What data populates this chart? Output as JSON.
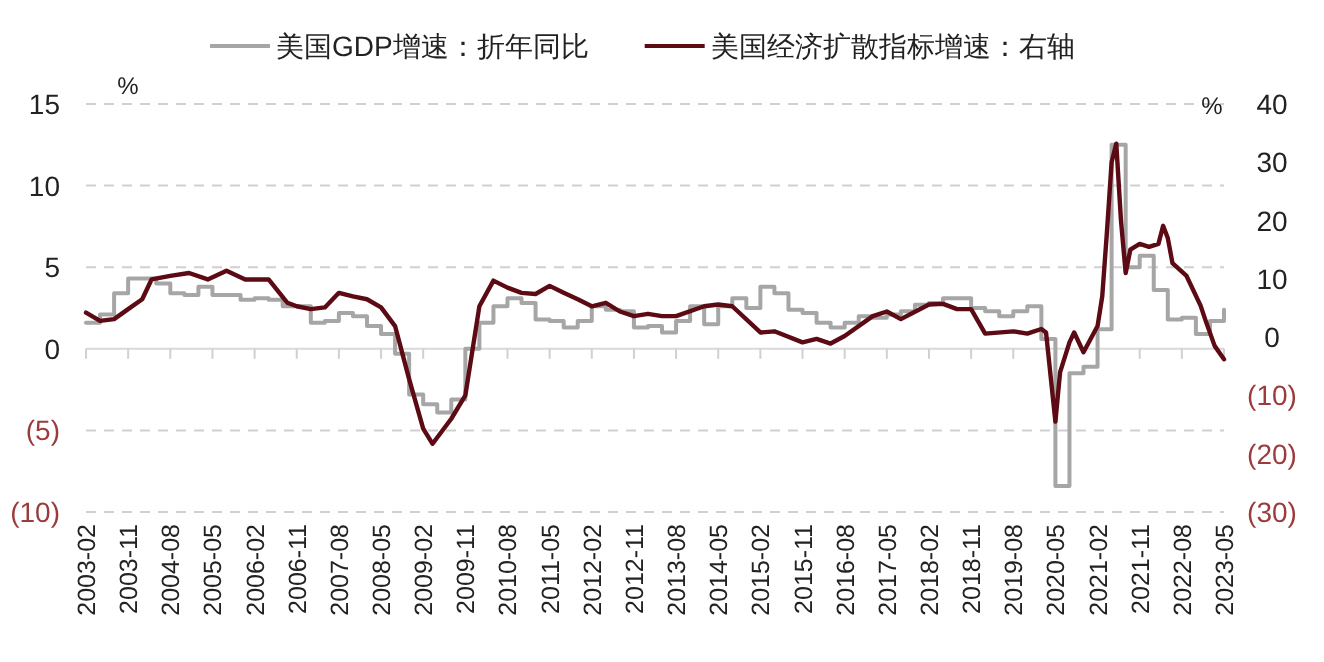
{
  "chart_data": {
    "type": "line",
    "ylabel": "%",
    "y2label": "%",
    "legend": "top",
    "grid": "y",
    "xlim": [
      "2003-02",
      "2023-05"
    ],
    "xticks": [
      "2003-02",
      "2003-11",
      "2004-08",
      "2005-05",
      "2006-02",
      "2006-11",
      "2007-08",
      "2008-05",
      "2009-02",
      "2009-11",
      "2010-08",
      "2011-05",
      "2012-02",
      "2012-11",
      "2013-08",
      "2014-05",
      "2015-02",
      "2015-11",
      "2016-08",
      "2017-05",
      "2018-02",
      "2018-11",
      "2019-08",
      "2020-05",
      "2021-02",
      "2021-11",
      "2022-08",
      "2023-05"
    ],
    "ylim": [
      -10,
      15
    ],
    "yticks": [
      {
        "value": -10,
        "label": "(10)"
      },
      {
        "value": -5,
        "label": "(5)"
      },
      0,
      5,
      10,
      15
    ],
    "y2lim": [
      -30,
      40
    ],
    "y2ticks": [
      {
        "value": -30,
        "label": "(30)"
      },
      {
        "value": -20,
        "label": "(20)"
      },
      {
        "value": -10,
        "label": "(10)"
      },
      0,
      10,
      20,
      30,
      40
    ],
    "ref_lines": [
      {
        "axis": "y",
        "value": 0,
        "color": "#d9d9d9"
      }
    ],
    "series": [
      {
        "name": "美国GDP增速：折年同比",
        "type": "step",
        "color": "#a6a6a6",
        "x": [
          "2003-02",
          "2003-05",
          "2003-08",
          "2003-11",
          "2004-02",
          "2004-05",
          "2004-08",
          "2004-11",
          "2005-02",
          "2005-05",
          "2005-08",
          "2005-11",
          "2006-02",
          "2006-05",
          "2006-08",
          "2006-11",
          "2007-02",
          "2007-05",
          "2007-08",
          "2007-11",
          "2008-02",
          "2008-05",
          "2008-08",
          "2008-11",
          "2009-02",
          "2009-05",
          "2009-08",
          "2009-11",
          "2010-02",
          "2010-05",
          "2010-08",
          "2010-11",
          "2011-02",
          "2011-05",
          "2011-08",
          "2011-11",
          "2012-02",
          "2012-05",
          "2012-08",
          "2012-11",
          "2013-02",
          "2013-05",
          "2013-08",
          "2013-11",
          "2014-02",
          "2014-05",
          "2014-08",
          "2014-11",
          "2015-02",
          "2015-05",
          "2015-08",
          "2015-11",
          "2016-02",
          "2016-05",
          "2016-08",
          "2016-11",
          "2017-02",
          "2017-05",
          "2017-08",
          "2017-11",
          "2018-02",
          "2018-05",
          "2018-08",
          "2018-11",
          "2019-02",
          "2019-05",
          "2019-08",
          "2019-11",
          "2020-02",
          "2020-05",
          "2020-08",
          "2020-11",
          "2021-02",
          "2021-05",
          "2021-08",
          "2021-11",
          "2022-02",
          "2022-05",
          "2022-08",
          "2022-11",
          "2023-02",
          "2023-05"
        ],
        "values": [
          1.6,
          2.1,
          3.4,
          4.3,
          4.3,
          4.0,
          3.4,
          3.3,
          3.8,
          3.3,
          3.3,
          3.0,
          3.1,
          3.0,
          2.6,
          2.6,
          1.6,
          1.7,
          2.2,
          2.0,
          1.4,
          0.9,
          -0.3,
          -2.8,
          -3.4,
          -3.9,
          -3.1,
          0.0,
          1.6,
          2.6,
          3.1,
          2.8,
          1.8,
          1.7,
          1.3,
          1.7,
          2.6,
          2.4,
          2.3,
          1.3,
          1.4,
          1.0,
          1.7,
          2.6,
          1.5,
          2.6,
          3.1,
          2.5,
          3.8,
          3.4,
          2.4,
          2.2,
          1.6,
          1.3,
          1.6,
          2.0,
          1.9,
          2.1,
          2.3,
          2.7,
          2.8,
          3.1,
          3.1,
          2.5,
          2.3,
          2.0,
          2.3,
          2.6,
          0.6,
          -8.4,
          -1.5,
          -1.1,
          1.2,
          12.5,
          5.0,
          5.7,
          3.6,
          1.8,
          1.9,
          0.9,
          1.7,
          2.4
        ]
      },
      {
        "name": "美国经济扩散指标增速：右轴",
        "type": "line",
        "axis": "y2",
        "color": "#5c0a14",
        "x": [
          "2003-02",
          "2003-05",
          "2003-08",
          "2003-11",
          "2004-02",
          "2004-04",
          "2004-08",
          "2004-12",
          "2005-04",
          "2005-08",
          "2005-12",
          "2006-05",
          "2006-09",
          "2006-11",
          "2007-02",
          "2007-05",
          "2007-08",
          "2007-11",
          "2008-02",
          "2008-05",
          "2008-08",
          "2008-11",
          "2009-02",
          "2009-04",
          "2009-08",
          "2009-11",
          "2010-02",
          "2010-05",
          "2010-08",
          "2010-11",
          "2011-02",
          "2011-05",
          "2011-08",
          "2011-11",
          "2012-02",
          "2012-05",
          "2012-08",
          "2012-11",
          "2013-02",
          "2013-05",
          "2013-08",
          "2014-02",
          "2014-05",
          "2014-08",
          "2015-02",
          "2015-05",
          "2015-11",
          "2016-02",
          "2016-05",
          "2016-08",
          "2017-02",
          "2017-05",
          "2017-08",
          "2018-02",
          "2018-05",
          "2018-08",
          "2018-11",
          "2019-02",
          "2019-08",
          "2019-11",
          "2020-02",
          "2020-03",
          "2020-05",
          "2020-06",
          "2020-08",
          "2020-09",
          "2020-11",
          "2021-02",
          "2021-03",
          "2021-04",
          "2021-05",
          "2021-06",
          "2021-07",
          "2021-08",
          "2021-09",
          "2021-11",
          "2022-01",
          "2022-03",
          "2022-04",
          "2022-05",
          "2022-06",
          "2022-09",
          "2022-12",
          "2023-01",
          "2023-03",
          "2023-05"
        ],
        "values": [
          4.2,
          2.8,
          3.1,
          4.8,
          6.5,
          9.9,
          10.5,
          11.0,
          9.9,
          11.4,
          9.9,
          9.9,
          5.9,
          5.3,
          4.8,
          5.1,
          7.6,
          7.0,
          6.5,
          5.1,
          1.9,
          -7.2,
          -15.7,
          -18.3,
          -14.0,
          -10.0,
          5.3,
          9.7,
          8.5,
          7.6,
          7.4,
          8.8,
          7.6,
          6.5,
          5.3,
          5.9,
          4.4,
          3.6,
          4.0,
          3.6,
          3.6,
          5.3,
          5.6,
          5.3,
          0.8,
          1.0,
          -0.9,
          -0.3,
          -1.1,
          0.2,
          3.6,
          4.4,
          3.1,
          5.6,
          5.7,
          4.8,
          4.8,
          0.6,
          1.0,
          0.6,
          1.4,
          0.8,
          -14.5,
          -6.0,
          -0.9,
          0.8,
          -2.6,
          1.9,
          7.0,
          18.0,
          30.0,
          33.2,
          20.0,
          11.0,
          15.0,
          16.0,
          15.5,
          16.0,
          19.1,
          17.0,
          12.7,
          10.5,
          5.4,
          3.0,
          -1.5,
          -3.8
        ]
      }
    ]
  }
}
